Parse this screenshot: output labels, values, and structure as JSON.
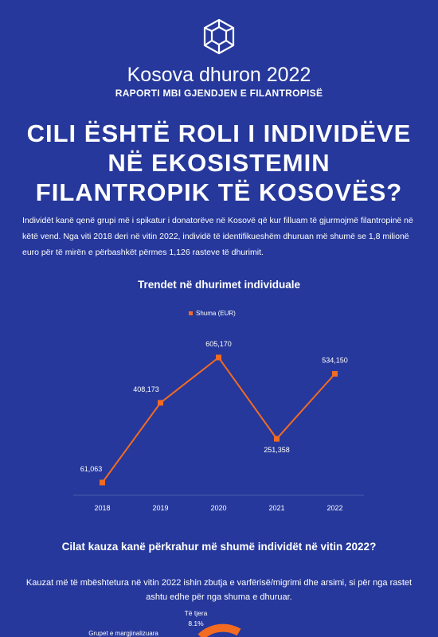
{
  "header": {
    "brand": "Kosova dhuron 2022",
    "subtitle": "RAPORTI MBI GJENDJEN E FILANTROPISË",
    "headline": [
      "CILI ËSHTË ROLI I INDIVIDËVE",
      "NË EKOSISTEMIN",
      "FILANTROPIK TË KOSOVËS?"
    ]
  },
  "intro": "Individët kanë qenë grupi më i spikatur i donatorëve në Kosovë që kur filluam të gjurmojmë filantropinë në këtë vend. Nga viti 2018 deri në vitin 2022, individë të identifikueshëm dhuruan më shumë se 1,8 milionë euro për të mirën e përbashkët përmes 1,126 rasteve të dhurimit.",
  "chart_data": {
    "type": "line",
    "title": "Trendet në dhurimet individuale",
    "categories": [
      "2018",
      "2019",
      "2020",
      "2021",
      "2022"
    ],
    "series": [
      {
        "name": "Shuma (EUR)",
        "color": "#f26b21",
        "values": [
          61063,
          408173,
          605170,
          251358,
          534150
        ],
        "value_labels": [
          "61,063",
          "408,173",
          "605,170",
          "251,358",
          "534,150"
        ]
      }
    ],
    "legend": "top"
  },
  "section2": {
    "title": "Cilat kauza kanë përkrahur më shumë individët në vitin 2022?",
    "text": "Kauzat më të mbështetura në vitin 2022 ishin zbutja e varfërisë/migrimi dhe arsimi, si për nga rastet ashtu edhe për nga shuma e dhuruar.",
    "pie_labels": [
      {
        "label": "Të tjera",
        "value_label": "8.1%"
      },
      {
        "label": "Grupet e margjinalizuara"
      }
    ]
  }
}
